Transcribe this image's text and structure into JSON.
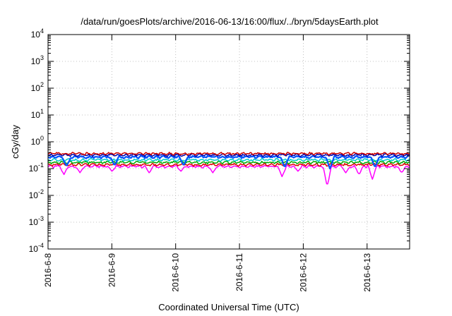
{
  "chart_data": {
    "type": "line",
    "title": "/data/run/goesPlots/archive/2016-06-13/16:00/flux/../bryn/5daysEarth.plot",
    "xlabel": "Coordinated Universal Time (UTC)",
    "ylabel": "cGy/day",
    "yscale": "log",
    "ylim": [
      0.0001,
      10000
    ],
    "xlim": [
      "2016-06-08T00:00",
      "2016-06-13T16:00"
    ],
    "grid": true,
    "legend": "none",
    "x_ticks": [
      "2016-6-8",
      "2016-6-9",
      "2016-6-10",
      "2016-6-11",
      "2016-6-12",
      "2016-6-13"
    ],
    "y_ticks": [
      {
        "base": "10",
        "exp": "-4",
        "value": 0.0001
      },
      {
        "base": "10",
        "exp": "-3",
        "value": 0.001
      },
      {
        "base": "10",
        "exp": "-2",
        "value": 0.01
      },
      {
        "base": "10",
        "exp": "-1",
        "value": 0.1
      },
      {
        "base": "10",
        "exp": "0",
        "value": 1
      },
      {
        "base": "10",
        "exp": "1",
        "value": 10
      },
      {
        "base": "10",
        "exp": "2",
        "value": 100
      },
      {
        "base": "10",
        "exp": "3",
        "value": 1000
      },
      {
        "base": "10",
        "exp": "4",
        "value": 10000
      }
    ],
    "series": [
      {
        "color": "#ff00ff",
        "level": 0.12,
        "dips": [
          {
            "x": "2016-06-08T06:00",
            "y": 0.06
          },
          {
            "x": "2016-06-08T12:00",
            "y": 0.07
          },
          {
            "x": "2016-06-09T00:00",
            "y": 0.08
          },
          {
            "x": "2016-06-09T14:00",
            "y": 0.07
          },
          {
            "x": "2016-06-10T02:00",
            "y": 0.08
          },
          {
            "x": "2016-06-10T14:00",
            "y": 0.07
          },
          {
            "x": "2016-06-11T16:00",
            "y": 0.05
          },
          {
            "x": "2016-06-11T22:00",
            "y": 0.08
          },
          {
            "x": "2016-06-12T09:00",
            "y": 0.022
          },
          {
            "x": "2016-06-12T16:00",
            "y": 0.07
          },
          {
            "x": "2016-06-12T21:00",
            "y": 0.06
          },
          {
            "x": "2016-06-13T02:00",
            "y": 0.04
          },
          {
            "x": "2016-06-13T13:00",
            "y": 0.07
          }
        ]
      },
      {
        "color": "#dd0000",
        "level": 0.14,
        "dips": []
      },
      {
        "color": "#00aa00",
        "level": 0.17,
        "dips": []
      },
      {
        "color": "#00cccc",
        "level": 0.21,
        "dips": []
      },
      {
        "color": "#0055ff",
        "level": 0.27,
        "dips": [
          {
            "x": "2016-06-08T07:00",
            "y": 0.12
          },
          {
            "x": "2016-06-09T01:00",
            "y": 0.13
          },
          {
            "x": "2016-06-10T03:00",
            "y": 0.13
          },
          {
            "x": "2016-06-11T17:00",
            "y": 0.11
          },
          {
            "x": "2016-06-12T10:00",
            "y": 0.1
          },
          {
            "x": "2016-06-13T03:00",
            "y": 0.11
          }
        ]
      },
      {
        "color": "#0000aa",
        "level": 0.32,
        "dips": []
      },
      {
        "color": "#cc0000",
        "level": 0.36,
        "dips": []
      }
    ]
  }
}
